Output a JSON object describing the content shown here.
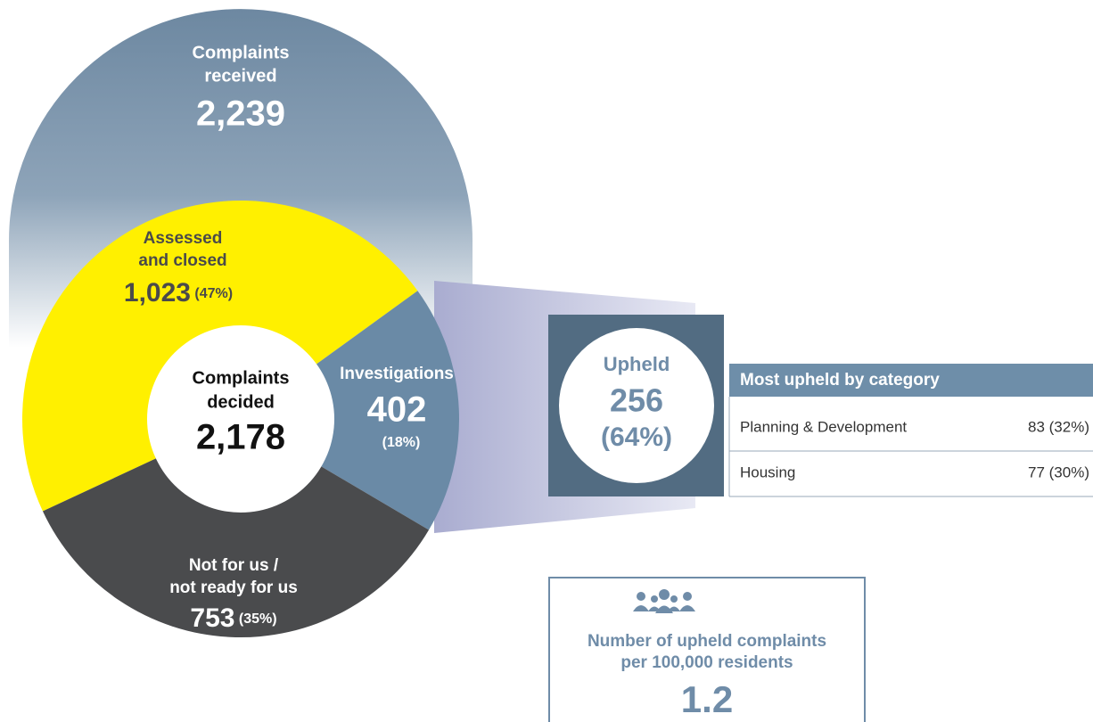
{
  "received": {
    "lines": [
      "Complaints",
      "received"
    ],
    "value_label": "2,239"
  },
  "decided": {
    "lines": [
      "Complaints",
      "decided"
    ],
    "value_label": "2,178"
  },
  "segments": [
    {
      "lines": [
        "Assessed",
        "and closed"
      ],
      "value": 1023,
      "value_label": "1,023",
      "percent_label": "(47%)",
      "color": "#fff000"
    },
    {
      "lines": [
        "Investigations"
      ],
      "value": 402,
      "value_label": "402",
      "percent_label": "(18%)",
      "color": "#6a8aa6"
    },
    {
      "lines": [
        "Not for us /",
        "not ready for us"
      ],
      "value": 753,
      "value_label": "753",
      "percent_label": "(35%)",
      "color": "#4a4b4d"
    }
  ],
  "upheld": {
    "label": "Upheld",
    "value_label": "256",
    "percent_label": "(64%)"
  },
  "table": {
    "header": "Most upheld by category",
    "rows": [
      [
        "Planning & Development",
        "83 (32%)"
      ],
      [
        "Housing",
        "77 (30%)"
      ]
    ]
  },
  "per_resident": {
    "lines": [
      "Number of upheld complaints",
      "per 100,000 residents"
    ],
    "value_label": "1.2"
  }
}
